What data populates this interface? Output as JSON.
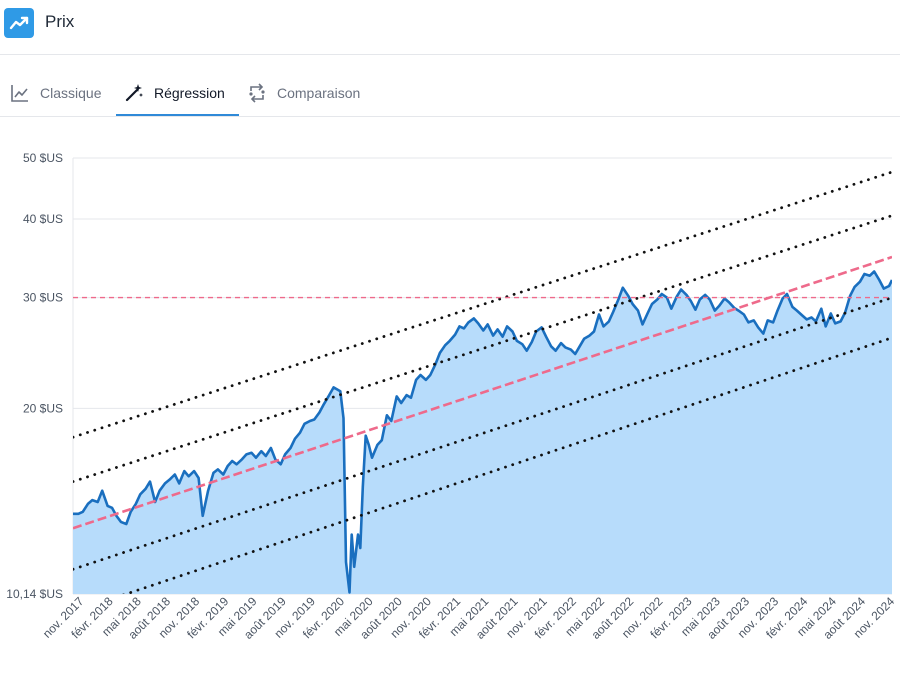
{
  "header": {
    "title": "Prix",
    "icon": "trending-up-icon"
  },
  "tabs": [
    {
      "label": "Classique",
      "icon": "line-chart-icon",
      "active": false
    },
    {
      "label": "Régression",
      "icon": "magic-wand-icon",
      "active": true
    },
    {
      "label": "Comparaison",
      "icon": "compare-arrows-icon",
      "active": false
    }
  ],
  "colors": {
    "accent": "#2f8ad8",
    "price_line": "#1a6fbf",
    "area_fill": "#b7dcfb",
    "regression": "#ee6a8b",
    "band": "#111111",
    "grid": "#e5e7eb"
  },
  "chart_data": {
    "type": "area",
    "y_scale": "log",
    "ylim": [
      10.14,
      50
    ],
    "y_ticks": [
      10.14,
      20,
      30,
      40,
      50
    ],
    "y_tick_labels": [
      "10,14 $US",
      "20 $US",
      "30 $US",
      "40 $US",
      "50 $US"
    ],
    "x_ticks": [
      {
        "date": "2017-11-01",
        "label": "nov. 2017"
      },
      {
        "date": "2018-02-01",
        "label": "févr. 2018"
      },
      {
        "date": "2018-05-01",
        "label": "mai 2018"
      },
      {
        "date": "2018-08-01",
        "label": "août 2018"
      },
      {
        "date": "2018-11-01",
        "label": "nov. 2018"
      },
      {
        "date": "2019-02-01",
        "label": "févr. 2019"
      },
      {
        "date": "2019-05-01",
        "label": "mai 2019"
      },
      {
        "date": "2019-08-01",
        "label": "août 2019"
      },
      {
        "date": "2019-11-01",
        "label": "nov. 2019"
      },
      {
        "date": "2020-02-01",
        "label": "févr. 2020"
      },
      {
        "date": "2020-05-01",
        "label": "mai 2020"
      },
      {
        "date": "2020-08-01",
        "label": "août 2020"
      },
      {
        "date": "2020-11-01",
        "label": "nov. 2020"
      },
      {
        "date": "2021-02-01",
        "label": "févr. 2021"
      },
      {
        "date": "2021-05-01",
        "label": "mai 2021"
      },
      {
        "date": "2021-08-01",
        "label": "août 2021"
      },
      {
        "date": "2021-11-01",
        "label": "nov. 2021"
      },
      {
        "date": "2022-02-01",
        "label": "févr. 2022"
      },
      {
        "date": "2022-05-01",
        "label": "mai 2022"
      },
      {
        "date": "2022-08-01",
        "label": "août 2022"
      },
      {
        "date": "2022-11-01",
        "label": "nov. 2022"
      },
      {
        "date": "2023-02-01",
        "label": "févr. 2023"
      },
      {
        "date": "2023-05-01",
        "label": "mai 2023"
      },
      {
        "date": "2023-08-01",
        "label": "août 2023"
      },
      {
        "date": "2023-11-01",
        "label": "nov. 2023"
      },
      {
        "date": "2024-02-01",
        "label": "févr. 2024"
      },
      {
        "date": "2024-05-01",
        "label": "mai 2024"
      },
      {
        "date": "2024-08-01",
        "label": "août 2024"
      },
      {
        "date": "2024-11-01",
        "label": "nov. 2024"
      }
    ],
    "series": [
      {
        "type": "area",
        "points": [
          [
            "2017-10-15",
            13.6
          ],
          [
            "2017-11-01",
            13.6
          ],
          [
            "2017-11-15",
            13.7
          ],
          [
            "2017-12-01",
            14.1
          ],
          [
            "2017-12-15",
            14.3
          ],
          [
            "2018-01-01",
            14.2
          ],
          [
            "2018-01-15",
            14.8
          ],
          [
            "2018-02-01",
            14.0
          ],
          [
            "2018-02-15",
            13.9
          ],
          [
            "2018-03-01",
            13.5
          ],
          [
            "2018-03-15",
            13.2
          ],
          [
            "2018-04-01",
            13.1
          ],
          [
            "2018-04-15",
            13.7
          ],
          [
            "2018-05-01",
            14.1
          ],
          [
            "2018-05-15",
            14.6
          ],
          [
            "2018-06-01",
            14.9
          ],
          [
            "2018-06-15",
            15.3
          ],
          [
            "2018-07-01",
            14.2
          ],
          [
            "2018-07-15",
            14.8
          ],
          [
            "2018-08-01",
            15.2
          ],
          [
            "2018-08-15",
            15.4
          ],
          [
            "2018-09-01",
            15.7
          ],
          [
            "2018-09-15",
            15.2
          ],
          [
            "2018-10-01",
            15.9
          ],
          [
            "2018-10-15",
            15.6
          ],
          [
            "2018-11-01",
            15.9
          ],
          [
            "2018-11-15",
            15.5
          ],
          [
            "2018-11-28",
            13.5
          ],
          [
            "2018-12-15",
            14.8
          ],
          [
            "2019-01-01",
            15.8
          ],
          [
            "2019-01-15",
            16.0
          ],
          [
            "2019-02-01",
            15.7
          ],
          [
            "2019-02-15",
            16.2
          ],
          [
            "2019-03-01",
            16.5
          ],
          [
            "2019-03-15",
            16.3
          ],
          [
            "2019-04-01",
            16.6
          ],
          [
            "2019-04-15",
            16.9
          ],
          [
            "2019-05-01",
            17.0
          ],
          [
            "2019-05-15",
            16.7
          ],
          [
            "2019-06-01",
            17.1
          ],
          [
            "2019-06-15",
            16.8
          ],
          [
            "2019-07-01",
            17.3
          ],
          [
            "2019-07-15",
            16.6
          ],
          [
            "2019-08-01",
            16.3
          ],
          [
            "2019-08-15",
            16.9
          ],
          [
            "2019-09-01",
            17.3
          ],
          [
            "2019-09-15",
            17.9
          ],
          [
            "2019-10-01",
            18.3
          ],
          [
            "2019-10-15",
            18.9
          ],
          [
            "2019-11-01",
            19.1
          ],
          [
            "2019-11-15",
            19.2
          ],
          [
            "2019-12-01",
            19.7
          ],
          [
            "2019-12-15",
            20.3
          ],
          [
            "2020-01-01",
            21.0
          ],
          [
            "2020-01-15",
            21.6
          ],
          [
            "2020-02-05",
            21.3
          ],
          [
            "2020-02-15",
            19.3
          ],
          [
            "2020-02-23",
            11.4
          ],
          [
            "2020-03-05",
            10.2
          ],
          [
            "2020-03-12",
            12.6
          ],
          [
            "2020-03-20",
            11.2
          ],
          [
            "2020-04-01",
            12.6
          ],
          [
            "2020-04-08",
            12.0
          ],
          [
            "2020-04-16",
            15.0
          ],
          [
            "2020-04-25",
            18.1
          ],
          [
            "2020-05-05",
            17.5
          ],
          [
            "2020-05-15",
            16.7
          ],
          [
            "2020-06-01",
            17.5
          ],
          [
            "2020-06-15",
            17.8
          ],
          [
            "2020-07-01",
            19.5
          ],
          [
            "2020-07-15",
            19.1
          ],
          [
            "2020-08-01",
            20.9
          ],
          [
            "2020-08-15",
            20.4
          ],
          [
            "2020-09-01",
            21.0
          ],
          [
            "2020-09-15",
            20.8
          ],
          [
            "2020-10-01",
            22.2
          ],
          [
            "2020-10-15",
            22.6
          ],
          [
            "2020-11-01",
            22.2
          ],
          [
            "2020-11-15",
            22.6
          ],
          [
            "2020-12-01",
            23.5
          ],
          [
            "2020-12-15",
            24.5
          ],
          [
            "2021-01-01",
            25.2
          ],
          [
            "2021-01-15",
            25.6
          ],
          [
            "2021-02-01",
            26.2
          ],
          [
            "2021-02-15",
            27.0
          ],
          [
            "2021-03-01",
            26.8
          ],
          [
            "2021-03-15",
            27.4
          ],
          [
            "2021-04-01",
            27.8
          ],
          [
            "2021-04-15",
            27.3
          ],
          [
            "2021-05-01",
            26.6
          ],
          [
            "2021-05-15",
            27.2
          ],
          [
            "2021-06-01",
            26.1
          ],
          [
            "2021-06-15",
            26.7
          ],
          [
            "2021-07-01",
            26.0
          ],
          [
            "2021-07-15",
            27.0
          ],
          [
            "2021-08-01",
            26.5
          ],
          [
            "2021-08-15",
            25.6
          ],
          [
            "2021-09-01",
            25.3
          ],
          [
            "2021-09-15",
            24.7
          ],
          [
            "2021-10-01",
            25.5
          ],
          [
            "2021-10-15",
            26.5
          ],
          [
            "2021-11-01",
            26.9
          ],
          [
            "2021-11-15",
            26.0
          ],
          [
            "2021-12-01",
            25.1
          ],
          [
            "2021-12-15",
            24.7
          ],
          [
            "2022-01-01",
            25.4
          ],
          [
            "2022-01-15",
            25.0
          ],
          [
            "2022-02-01",
            24.8
          ],
          [
            "2022-02-15",
            24.4
          ],
          [
            "2022-03-01",
            25.1
          ],
          [
            "2022-03-15",
            25.8
          ],
          [
            "2022-04-01",
            26.1
          ],
          [
            "2022-04-15",
            26.5
          ],
          [
            "2022-05-01",
            28.2
          ],
          [
            "2022-05-15",
            27.0
          ],
          [
            "2022-06-01",
            27.5
          ],
          [
            "2022-06-15",
            28.5
          ],
          [
            "2022-07-01",
            29.8
          ],
          [
            "2022-07-15",
            31.1
          ],
          [
            "2022-08-01",
            30.2
          ],
          [
            "2022-08-15",
            29.3
          ],
          [
            "2022-09-01",
            28.6
          ],
          [
            "2022-09-15",
            27.2
          ],
          [
            "2022-10-01",
            28.3
          ],
          [
            "2022-10-15",
            29.3
          ],
          [
            "2022-11-01",
            29.8
          ],
          [
            "2022-11-15",
            30.4
          ],
          [
            "2022-12-01",
            30.0
          ],
          [
            "2022-12-15",
            28.8
          ],
          [
            "2023-01-01",
            30.1
          ],
          [
            "2023-01-15",
            30.9
          ],
          [
            "2023-02-01",
            30.3
          ],
          [
            "2023-02-15",
            29.6
          ],
          [
            "2023-03-01",
            28.7
          ],
          [
            "2023-03-15",
            29.8
          ],
          [
            "2023-04-01",
            30.3
          ],
          [
            "2023-04-15",
            29.8
          ],
          [
            "2023-05-01",
            28.6
          ],
          [
            "2023-05-15",
            29.1
          ],
          [
            "2023-06-01",
            29.9
          ],
          [
            "2023-06-15",
            29.5
          ],
          [
            "2023-07-01",
            28.9
          ],
          [
            "2023-07-15",
            28.6
          ],
          [
            "2023-08-01",
            28.2
          ],
          [
            "2023-08-15",
            27.4
          ],
          [
            "2023-09-01",
            27.6
          ],
          [
            "2023-09-15",
            26.9
          ],
          [
            "2023-10-01",
            26.3
          ],
          [
            "2023-10-15",
            27.6
          ],
          [
            "2023-11-01",
            27.4
          ],
          [
            "2023-11-15",
            28.6
          ],
          [
            "2023-12-01",
            29.9
          ],
          [
            "2023-12-15",
            30.4
          ],
          [
            "2024-01-01",
            29.0
          ],
          [
            "2024-01-15",
            28.6
          ],
          [
            "2024-02-01",
            28.1
          ],
          [
            "2024-02-15",
            27.7
          ],
          [
            "2024-03-01",
            27.9
          ],
          [
            "2024-03-15",
            27.5
          ],
          [
            "2024-04-01",
            28.8
          ],
          [
            "2024-04-15",
            27.0
          ],
          [
            "2024-05-01",
            28.3
          ],
          [
            "2024-05-15",
            27.3
          ],
          [
            "2024-06-01",
            27.5
          ],
          [
            "2024-06-15",
            28.4
          ],
          [
            "2024-07-01",
            30.2
          ],
          [
            "2024-07-15",
            31.2
          ],
          [
            "2024-08-01",
            31.8
          ],
          [
            "2024-08-15",
            32.7
          ],
          [
            "2024-09-01",
            32.5
          ],
          [
            "2024-09-15",
            33.0
          ],
          [
            "2024-10-01",
            32.0
          ],
          [
            "2024-10-15",
            31.0
          ],
          [
            "2024-11-01",
            31.3
          ],
          [
            "2024-11-10",
            32.0
          ]
        ]
      },
      {
        "type": "regression",
        "style": "dashed",
        "points": [
          [
            "2017-10-15",
            12.9
          ],
          [
            "2024-11-10",
            34.8
          ]
        ]
      },
      {
        "type": "band",
        "style": "dotted",
        "points": [
          [
            "2017-10-15",
            18.0
          ],
          [
            "2024-11-10",
            47.5
          ]
        ]
      },
      {
        "type": "band",
        "style": "dotted",
        "points": [
          [
            "2017-10-15",
            15.3
          ],
          [
            "2024-11-10",
            40.5
          ]
        ]
      },
      {
        "type": "band",
        "style": "dotted",
        "points": [
          [
            "2017-10-15",
            11.1
          ],
          [
            "2024-11-10",
            30.0
          ]
        ]
      },
      {
        "type": "band",
        "style": "dotted",
        "points": [
          [
            "2017-10-15",
            9.5
          ],
          [
            "2024-11-10",
            25.9
          ]
        ]
      },
      {
        "type": "reference",
        "style": "dashed",
        "points": [
          [
            "2017-10-15",
            30.0
          ],
          [
            "2024-11-10",
            30.0
          ]
        ]
      }
    ]
  }
}
